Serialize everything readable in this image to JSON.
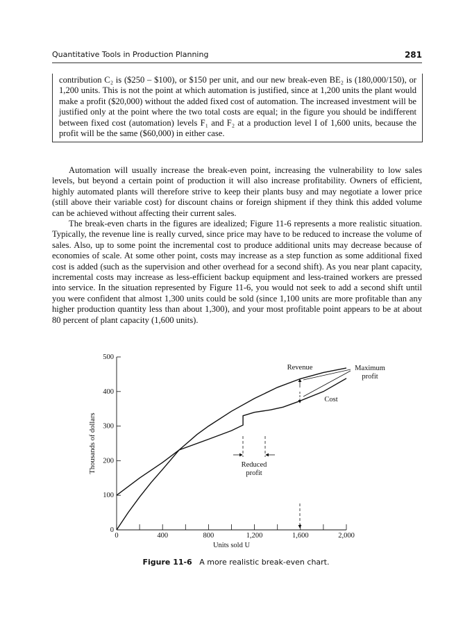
{
  "header": {
    "title": "Quantitative Tools in Production Planning",
    "page_number": "281"
  },
  "box": {
    "text": "contribution C₂ is ($250 – $100), or $150 per unit, and our new break-even BE₂ is (180,000/150), or 1,200 units. This is not the point at which automation is justified, since at 1,200 units the plant would make a profit ($20,000) without the added fixed cost of automation. The increased investment will be justified only at the point where the two total costs are equal; in the figure you should be indifferent between fixed cost (automation) levels F₁ and F₂ at a production level I of 1,600 units, because the profit will be the same ($60,000) in either case."
  },
  "body": {
    "paragraphs": [
      "Automation will usually increase the break-even point, increasing the vulnerability to low sales levels, but beyond a certain point of production it will also increase profitability. Owners of efficient, highly automated plants will therefore strive to keep their plants busy and may negotiate a lower price (still above their variable cost) for discount chains or foreign shipment if they think this added volume can be achieved without affecting their current sales.",
      "The break-even charts in the figures are idealized; Figure 11-6 represents a more realistic situation. Typically, the revenue line is really curved, since price may have to be reduced to increase the volume of sales. Also, up to some point the incremental cost to produce additional units may decrease because of economies of scale. At some other point, costs may increase as a step function as some additional fixed cost is added (such as the supervision and other overhead for a second shift). As you near plant capacity, incremental costs may increase as less-efficient backup equipment and less-trained workers are pressed into service. In the situation represented by Figure 11-6, you would not seek to add a second shift until you were confident that almost 1,300 units could be sold (since 1,100 units are more profitable than any higher production quantity less than about 1,300), and your most profitable point appears to be at about 80 percent of plant capacity (1,600 units)."
    ]
  },
  "chart_data": {
    "type": "line",
    "x_label": "Units sold U",
    "y_label": "Thousands of dollars",
    "xlim": [
      0,
      2000
    ],
    "ylim": [
      0,
      500
    ],
    "xticks": [
      0,
      400,
      800,
      {
        "value": 1200,
        "label": "1,200"
      },
      {
        "value": 1600,
        "label": "1,600"
      },
      {
        "value": 2000,
        "label": "2,000"
      }
    ],
    "x_minor_ticks": [
      200,
      600,
      1000,
      1400,
      1800
    ],
    "yticks": [
      0,
      100,
      200,
      300,
      400,
      500
    ],
    "series": [
      {
        "name": "Revenue",
        "color": "#111111",
        "x": [
          0,
          100,
          200,
          300,
          400,
          544,
          700,
          800,
          1000,
          1200,
          1400,
          1600,
          1800,
          2000
        ],
        "values": [
          0,
          50,
          95,
          137,
          175,
          231,
          276,
          300,
          343,
          380,
          412,
          437,
          455,
          468
        ]
      },
      {
        "name": "Cost",
        "color": "#111111",
        "x": [
          0,
          200,
          400,
          544,
          800,
          1000,
          1100,
          1100,
          1200,
          1340,
          1450,
          1583,
          1800,
          2000
        ],
        "values": [
          100,
          150,
          195,
          231,
          262,
          287,
          303,
          330,
          340,
          347,
          355,
          371,
          400,
          438
        ]
      }
    ],
    "annotations": {
      "max_profit": [
        "Maximum",
        "profit"
      ],
      "reduced_profit": [
        "Reduced",
        "profit"
      ]
    }
  },
  "caption": {
    "number": "Figure 11-6",
    "text": "A more realistic break-even chart."
  }
}
